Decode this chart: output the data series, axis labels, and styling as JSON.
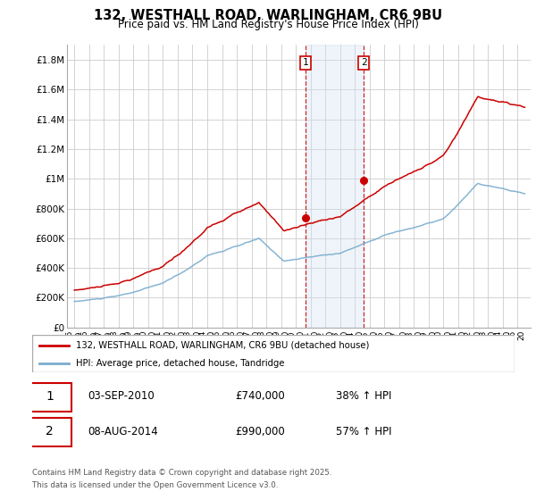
{
  "title": "132, WESTHALL ROAD, WARLINGHAM, CR6 9BU",
  "subtitle": "Price paid vs. HM Land Registry's House Price Index (HPI)",
  "ylim": [
    0,
    1900000
  ],
  "yticks": [
    0,
    200000,
    400000,
    600000,
    800000,
    1000000,
    1200000,
    1400000,
    1600000,
    1800000
  ],
  "ytick_labels": [
    "£0",
    "£200K",
    "£400K",
    "£600K",
    "£800K",
    "£1M",
    "£1.2M",
    "£1.4M",
    "£1.6M",
    "£1.8M"
  ],
  "sale1_x": 2010.67,
  "sale1_y": 740000,
  "sale2_x": 2014.59,
  "sale2_y": 990000,
  "line1_color": "#cc0000",
  "line2_color": "#7aadcf",
  "shade_color": "#cfe0f0",
  "vline_color": "#cc0000",
  "legend1": "132, WESTHALL ROAD, WARLINGHAM, CR6 9BU (detached house)",
  "legend2": "HPI: Average price, detached house, Tandridge",
  "footnote1": "Contains HM Land Registry data © Crown copyright and database right 2025.",
  "footnote2": "This data is licensed under the Open Government Licence v3.0.",
  "table_row1_num": "1",
  "table_row1_date": "03-SEP-2010",
  "table_row1_price": "£740,000",
  "table_row1_hpi": "38% ↑ HPI",
  "table_row2_num": "2",
  "table_row2_date": "08-AUG-2014",
  "table_row2_price": "£990,000",
  "table_row2_hpi": "57% ↑ HPI",
  "background_color": "#ffffff",
  "grid_color": "#cccccc",
  "xmin": 1994.5,
  "xmax": 2025.9
}
